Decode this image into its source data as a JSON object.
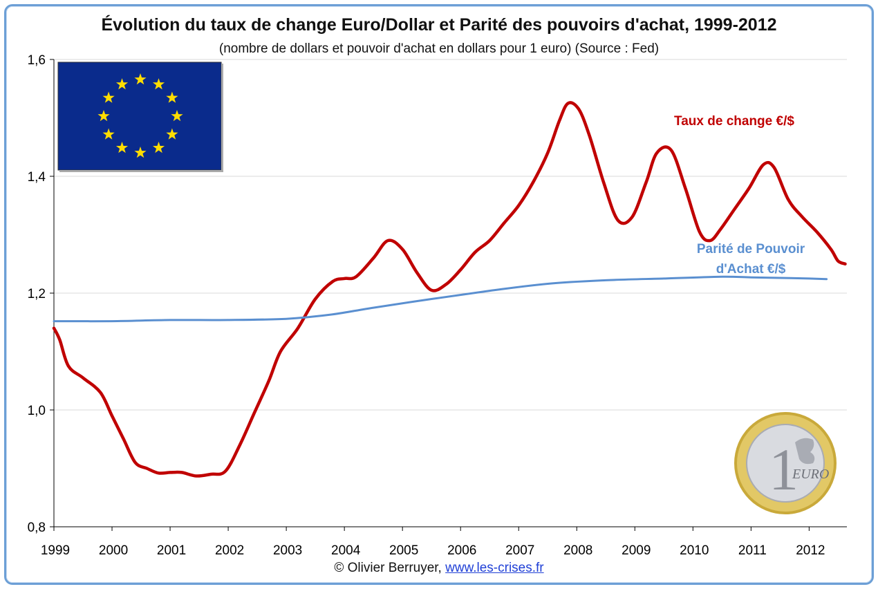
{
  "chart_data": {
    "type": "line",
    "title": "Évolution du taux de change Euro/Dollar et Parité des pouvoirs d'achat, 1999-2012",
    "subtitle": "(nombre de dollars et pouvoir d'achat en dollars pour 1 euro) (Source : Fed)",
    "xlim": [
      1999.0,
      2012.65
    ],
    "ylim": [
      0.8,
      1.6
    ],
    "x_ticks": [
      "1999",
      "2000",
      "2001",
      "2002",
      "2003",
      "2004",
      "2005",
      "2006",
      "2007",
      "2008",
      "2009",
      "2010",
      "2011",
      "2012"
    ],
    "y_ticks": [
      "0,8",
      "1,0",
      "1,2",
      "1,4",
      "1,6"
    ],
    "grid": true,
    "series": [
      {
        "name": "Taux de change €/$",
        "color": "#c00000",
        "points": [
          [
            1999.0,
            1.14
          ],
          [
            1999.1,
            1.12
          ],
          [
            1999.25,
            1.075
          ],
          [
            1999.5,
            1.055
          ],
          [
            1999.8,
            1.03
          ],
          [
            2000.0,
            0.99
          ],
          [
            2000.2,
            0.95
          ],
          [
            2000.4,
            0.91
          ],
          [
            2000.6,
            0.9
          ],
          [
            2000.8,
            0.892
          ],
          [
            2001.0,
            0.893
          ],
          [
            2001.2,
            0.893
          ],
          [
            2001.45,
            0.887
          ],
          [
            2001.7,
            0.89
          ],
          [
            2001.95,
            0.895
          ],
          [
            2002.2,
            0.94
          ],
          [
            2002.45,
            0.995
          ],
          [
            2002.7,
            1.05
          ],
          [
            2002.9,
            1.1
          ],
          [
            2003.2,
            1.14
          ],
          [
            2003.5,
            1.19
          ],
          [
            2003.8,
            1.22
          ],
          [
            2004.0,
            1.225
          ],
          [
            2004.2,
            1.228
          ],
          [
            2004.5,
            1.26
          ],
          [
            2004.75,
            1.29
          ],
          [
            2005.0,
            1.275
          ],
          [
            2005.25,
            1.235
          ],
          [
            2005.5,
            1.205
          ],
          [
            2005.75,
            1.215
          ],
          [
            2006.0,
            1.24
          ],
          [
            2006.25,
            1.27
          ],
          [
            2006.5,
            1.29
          ],
          [
            2006.75,
            1.32
          ],
          [
            2007.0,
            1.35
          ],
          [
            2007.25,
            1.39
          ],
          [
            2007.5,
            1.44
          ],
          [
            2007.7,
            1.495
          ],
          [
            2007.85,
            1.525
          ],
          [
            2008.0,
            1.515
          ],
          [
            2008.15,
            1.47
          ],
          [
            2008.35,
            1.39
          ],
          [
            2008.55,
            1.325
          ],
          [
            2008.75,
            1.33
          ],
          [
            2008.95,
            1.39
          ],
          [
            2009.1,
            1.44
          ],
          [
            2009.3,
            1.445
          ],
          [
            2009.5,
            1.38
          ],
          [
            2009.7,
            1.305
          ],
          [
            2009.85,
            1.29
          ],
          [
            2010.0,
            1.31
          ],
          [
            2010.2,
            1.345
          ],
          [
            2010.4,
            1.38
          ],
          [
            2010.6,
            1.42
          ],
          [
            2010.75,
            1.415
          ],
          [
            2010.95,
            1.36
          ],
          [
            2011.15,
            1.33
          ],
          [
            2011.35,
            1.305
          ],
          [
            2011.55,
            1.275
          ],
          [
            2011.65,
            1.255
          ],
          [
            2011.75,
            1.25
          ]
        ]
      },
      {
        "name": "Parité de Pouvoir d'Achat €/$",
        "color": "#5a8fd0",
        "points": [
          [
            1999.0,
            1.152
          ],
          [
            2000.0,
            1.152
          ],
          [
            2001.0,
            1.154
          ],
          [
            2002.0,
            1.154
          ],
          [
            2003.0,
            1.156
          ],
          [
            2003.75,
            1.163
          ],
          [
            2004.5,
            1.175
          ],
          [
            2005.5,
            1.19
          ],
          [
            2006.5,
            1.204
          ],
          [
            2007.5,
            1.216
          ],
          [
            2008.5,
            1.222
          ],
          [
            2009.5,
            1.225
          ],
          [
            2010.5,
            1.228
          ],
          [
            2011.0,
            1.227
          ],
          [
            2011.5,
            1.226
          ],
          [
            2012.0,
            1.225
          ],
          [
            2012.3,
            1.224
          ]
        ]
      }
    ]
  },
  "labels": {
    "fx_line1": "Taux de change €/$",
    "ppp_line1": "Parité de Pouvoir",
    "ppp_line2": "d'Achat €/$"
  },
  "footer": {
    "author": "© Olivier Berruyer,",
    "link": "www.les-crises.fr"
  },
  "images": {
    "flag_icon": "eu-flag-icon",
    "coin_icon": "euro-coin-icon"
  }
}
